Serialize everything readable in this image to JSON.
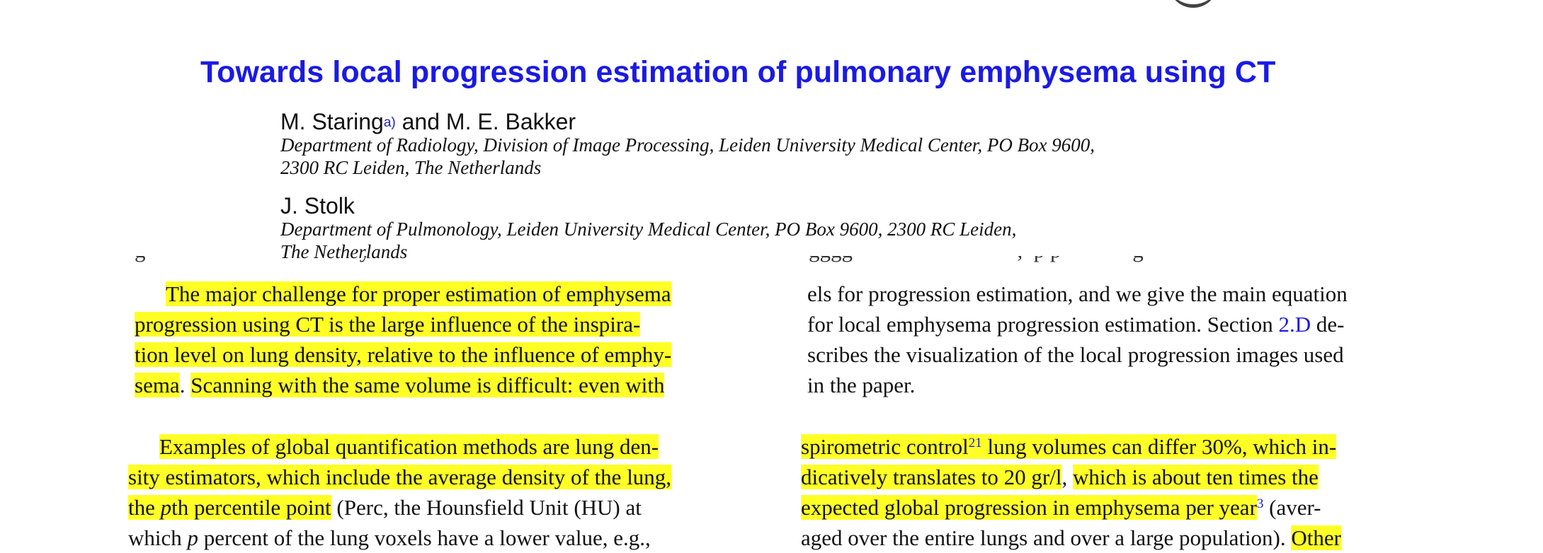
{
  "title": "Towards local progression estimation of pulmonary emphysema using CT",
  "authors": [
    {
      "name": "M. Staring",
      "footnote": "a)",
      "coauthor": " and M. E. Bakker",
      "affiliation": [
        "Department of Radiology, Division of Image Processing, Leiden University Medical Center, PO Box 9600,",
        "2300 RC Leiden, The Netherlands"
      ]
    },
    {
      "name": "J. Stolk",
      "affiliation": [
        "Department of Pulmonology, Leiden University Medical Center, PO Box 9600, 2300 RC Leiden,",
        "The Netherlands"
      ]
    }
  ],
  "left_upper": {
    "l1": "The major challenge for proper estimation of emphysema",
    "l2": "progression using CT is the large influence of the inspira-",
    "l3": "tion level on lung density, relative to the influence of emphy-",
    "l4a": "sema",
    "l4b": ". ",
    "l4c": "Scanning with the same volume is difficult: even with"
  },
  "right_upper": {
    "l1": "els for progression estimation, and we give the main equation",
    "l2a": "for local emphysema progression estimation. Section ",
    "l2b": "2.D",
    "l2c": " de-",
    "l3": "scribes the visualization of the local progression images used",
    "l4": "in the paper."
  },
  "left_lower": {
    "l1": "Examples of global quantification methods are lung den-",
    "l2": "sity estimators, which include the average density of the lung,",
    "l3a": "the ",
    "l3b": "p",
    "l3c": "th percentile point",
    "l3d": " (Perc, the Hounsfield Unit (HU) at",
    "l4a": "which ",
    "l4b": "p",
    "l4c": " percent of the lung voxels have a lower value, e.g.,"
  },
  "right_lower": {
    "l1a": "spirometric control",
    "l1ref": "21",
    "l1b": " lung volumes can differ 30%, which in-",
    "l2a": "dicatively translates to 20 gr/l",
    "l2b": ", ",
    "l2c": "which is about ten times the",
    "l3a": "expected global progression in emphysema per year",
    "l3ref": "3",
    "l3b": " (aver-",
    "l4a": "aged over the entire lungs and over a large population). ",
    "l4b": "Other"
  },
  "colors": {
    "highlight": "#ffff26",
    "link_blue": "#1a1ae6",
    "text": "#111111"
  }
}
